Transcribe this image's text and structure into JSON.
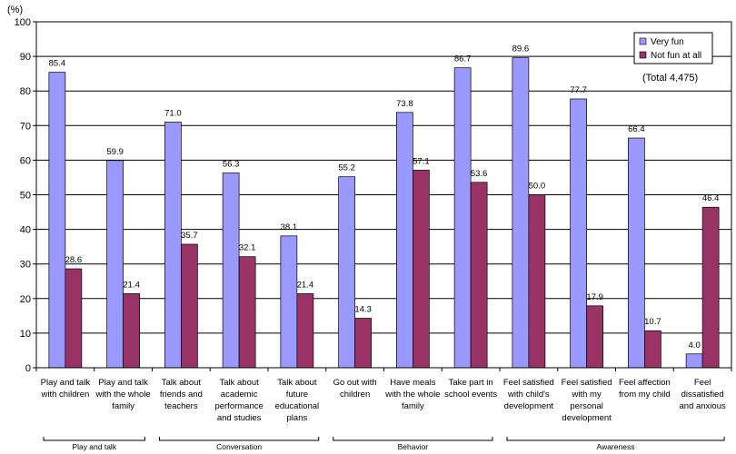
{
  "chart_data": {
    "type": "bar",
    "unit_label": "(%)",
    "ylim": [
      0,
      100
    ],
    "yticks": [
      0,
      10,
      20,
      30,
      40,
      50,
      60,
      70,
      80,
      90,
      100
    ],
    "grid": true,
    "legend_position": "top-right",
    "categories": [
      [
        "Play and talk",
        "with children"
      ],
      [
        "Play and talk",
        "with the whole",
        "family"
      ],
      [
        "Talk about",
        "friends and",
        "teachers"
      ],
      [
        "Talk about",
        "academic",
        "performance",
        "and studies"
      ],
      [
        "Talk about",
        "future",
        "educational",
        "plans"
      ],
      [
        "Go out with",
        "children"
      ],
      [
        "Have meals",
        "with the whole",
        "family"
      ],
      [
        "Take part in",
        "school events"
      ],
      [
        "Feel satisfied",
        "with child's",
        "development"
      ],
      [
        "Feel satisfied",
        "with my",
        "personal",
        "development"
      ],
      [
        "Feel affection",
        "from my child"
      ],
      [
        "Feel",
        "dissatisfied",
        "and anxious"
      ]
    ],
    "series": [
      {
        "name": "Very fun",
        "color": "#9999ff",
        "values": [
          85.4,
          59.9,
          71.0,
          56.3,
          38.1,
          55.2,
          73.8,
          86.7,
          89.6,
          77.7,
          66.4,
          4.0
        ]
      },
      {
        "name": "Not fun at all",
        "color": "#993366",
        "values": [
          28.6,
          21.4,
          35.7,
          32.1,
          21.4,
          14.3,
          57.1,
          53.6,
          50.0,
          17.9,
          10.7,
          46.4
        ]
      }
    ],
    "groups": [
      {
        "label": "Play and talk",
        "start": 0,
        "end": 1
      },
      {
        "label": "Conversation",
        "start": 2,
        "end": 4
      },
      {
        "label": "Behavior",
        "start": 5,
        "end": 7
      },
      {
        "label": "Awareness",
        "start": 8,
        "end": 11
      }
    ],
    "annotation": "(Total 4,475)"
  }
}
